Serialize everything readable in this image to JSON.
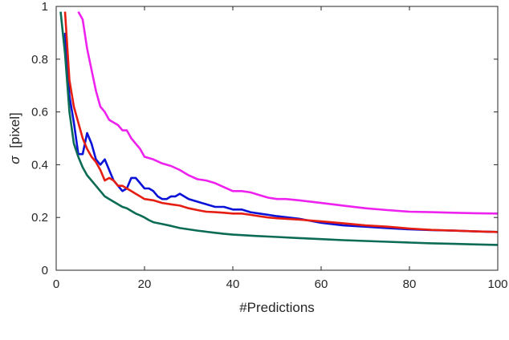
{
  "chart_data": {
    "type": "line",
    "xlabel": "#Predictions",
    "ylabel_symbol": "σ",
    "ylabel_unit": "[pixel]",
    "xlim": [
      0,
      100
    ],
    "ylim": [
      0,
      1
    ],
    "x_ticks": [
      0,
      20,
      40,
      60,
      80,
      100
    ],
    "y_ticks": [
      0,
      0.2,
      0.4,
      0.6,
      0.8,
      1
    ],
    "x_tick_labels": [
      "0",
      "20",
      "40",
      "60",
      "80",
      "100"
    ],
    "y_tick_labels": [
      "0",
      "0.2",
      "0.4",
      "0.6",
      "0.8",
      "1"
    ],
    "grid": false,
    "series": [
      {
        "color": "#ee22ee",
        "points": [
          [
            5,
            0.98
          ],
          [
            6,
            0.95
          ],
          [
            7,
            0.84
          ],
          [
            8,
            0.76
          ],
          [
            9,
            0.68
          ],
          [
            10,
            0.62
          ],
          [
            11,
            0.6
          ],
          [
            12,
            0.57
          ],
          [
            14,
            0.55
          ],
          [
            15,
            0.53
          ],
          [
            16,
            0.53
          ],
          [
            17,
            0.5
          ],
          [
            19,
            0.46
          ],
          [
            20,
            0.43
          ],
          [
            22,
            0.42
          ],
          [
            24,
            0.405
          ],
          [
            26,
            0.395
          ],
          [
            28,
            0.38
          ],
          [
            30,
            0.36
          ],
          [
            32,
            0.345
          ],
          [
            34,
            0.34
          ],
          [
            36,
            0.33
          ],
          [
            38,
            0.315
          ],
          [
            40,
            0.3
          ],
          [
            42,
            0.3
          ],
          [
            44,
            0.295
          ],
          [
            46,
            0.285
          ],
          [
            48,
            0.275
          ],
          [
            50,
            0.27
          ],
          [
            52,
            0.27
          ],
          [
            55,
            0.265
          ],
          [
            60,
            0.255
          ],
          [
            65,
            0.245
          ],
          [
            70,
            0.235
          ],
          [
            75,
            0.228
          ],
          [
            80,
            0.222
          ],
          [
            85,
            0.22
          ],
          [
            90,
            0.218
          ],
          [
            95,
            0.216
          ],
          [
            100,
            0.215
          ]
        ]
      },
      {
        "color": "#0a12d8",
        "points": [
          [
            2,
            0.9
          ],
          [
            3,
            0.66
          ],
          [
            4,
            0.56
          ],
          [
            5,
            0.44
          ],
          [
            6,
            0.44
          ],
          [
            7,
            0.52
          ],
          [
            8,
            0.48
          ],
          [
            9,
            0.42
          ],
          [
            10,
            0.4
          ],
          [
            11,
            0.42
          ],
          [
            12,
            0.38
          ],
          [
            13,
            0.34
          ],
          [
            14,
            0.32
          ],
          [
            15,
            0.3
          ],
          [
            16,
            0.31
          ],
          [
            17,
            0.35
          ],
          [
            18,
            0.35
          ],
          [
            19,
            0.33
          ],
          [
            20,
            0.31
          ],
          [
            21,
            0.31
          ],
          [
            22,
            0.3
          ],
          [
            23,
            0.28
          ],
          [
            24,
            0.27
          ],
          [
            25,
            0.27
          ],
          [
            26,
            0.28
          ],
          [
            27,
            0.28
          ],
          [
            28,
            0.29
          ],
          [
            30,
            0.27
          ],
          [
            32,
            0.26
          ],
          [
            34,
            0.25
          ],
          [
            36,
            0.24
          ],
          [
            38,
            0.24
          ],
          [
            40,
            0.23
          ],
          [
            42,
            0.23
          ],
          [
            44,
            0.22
          ],
          [
            46,
            0.215
          ],
          [
            48,
            0.21
          ],
          [
            50,
            0.205
          ],
          [
            55,
            0.195
          ],
          [
            60,
            0.18
          ],
          [
            65,
            0.17
          ],
          [
            70,
            0.165
          ],
          [
            75,
            0.16
          ],
          [
            80,
            0.155
          ],
          [
            85,
            0.152
          ],
          [
            90,
            0.15
          ],
          [
            95,
            0.147
          ],
          [
            100,
            0.145
          ]
        ]
      },
      {
        "color": "#e61e12",
        "points": [
          [
            2,
            0.98
          ],
          [
            3,
            0.72
          ],
          [
            4,
            0.62
          ],
          [
            5,
            0.56
          ],
          [
            6,
            0.5
          ],
          [
            7,
            0.46
          ],
          [
            8,
            0.43
          ],
          [
            9,
            0.41
          ],
          [
            10,
            0.38
          ],
          [
            11,
            0.34
          ],
          [
            12,
            0.35
          ],
          [
            13,
            0.34
          ],
          [
            14,
            0.32
          ],
          [
            15,
            0.32
          ],
          [
            16,
            0.31
          ],
          [
            17,
            0.3
          ],
          [
            18,
            0.29
          ],
          [
            19,
            0.28
          ],
          [
            20,
            0.27
          ],
          [
            22,
            0.265
          ],
          [
            24,
            0.255
          ],
          [
            26,
            0.25
          ],
          [
            28,
            0.245
          ],
          [
            30,
            0.235
          ],
          [
            32,
            0.228
          ],
          [
            34,
            0.222
          ],
          [
            36,
            0.22
          ],
          [
            38,
            0.218
          ],
          [
            40,
            0.215
          ],
          [
            42,
            0.215
          ],
          [
            44,
            0.21
          ],
          [
            46,
            0.205
          ],
          [
            48,
            0.2
          ],
          [
            50,
            0.197
          ],
          [
            55,
            0.192
          ],
          [
            60,
            0.185
          ],
          [
            65,
            0.178
          ],
          [
            70,
            0.17
          ],
          [
            75,
            0.165
          ],
          [
            80,
            0.158
          ],
          [
            85,
            0.153
          ],
          [
            90,
            0.15
          ],
          [
            95,
            0.147
          ],
          [
            100,
            0.145
          ]
        ]
      },
      {
        "color": "#0b6b54",
        "points": [
          [
            1,
            0.98
          ],
          [
            2,
            0.82
          ],
          [
            3,
            0.6
          ],
          [
            4,
            0.48
          ],
          [
            5,
            0.43
          ],
          [
            6,
            0.39
          ],
          [
            7,
            0.36
          ],
          [
            8,
            0.34
          ],
          [
            9,
            0.32
          ],
          [
            10,
            0.3
          ],
          [
            11,
            0.28
          ],
          [
            12,
            0.27
          ],
          [
            13,
            0.26
          ],
          [
            14,
            0.25
          ],
          [
            15,
            0.24
          ],
          [
            16,
            0.235
          ],
          [
            17,
            0.225
          ],
          [
            18,
            0.215
          ],
          [
            19,
            0.208
          ],
          [
            20,
            0.2
          ],
          [
            21,
            0.19
          ],
          [
            22,
            0.182
          ],
          [
            24,
            0.175
          ],
          [
            26,
            0.168
          ],
          [
            28,
            0.16
          ],
          [
            30,
            0.155
          ],
          [
            32,
            0.15
          ],
          [
            34,
            0.146
          ],
          [
            36,
            0.142
          ],
          [
            38,
            0.138
          ],
          [
            40,
            0.135
          ],
          [
            42,
            0.133
          ],
          [
            45,
            0.13
          ],
          [
            50,
            0.126
          ],
          [
            55,
            0.122
          ],
          [
            60,
            0.118
          ],
          [
            65,
            0.114
          ],
          [
            70,
            0.111
          ],
          [
            75,
            0.108
          ],
          [
            80,
            0.105
          ],
          [
            85,
            0.102
          ],
          [
            90,
            0.1
          ],
          [
            95,
            0.098
          ],
          [
            100,
            0.096
          ]
        ]
      }
    ]
  }
}
